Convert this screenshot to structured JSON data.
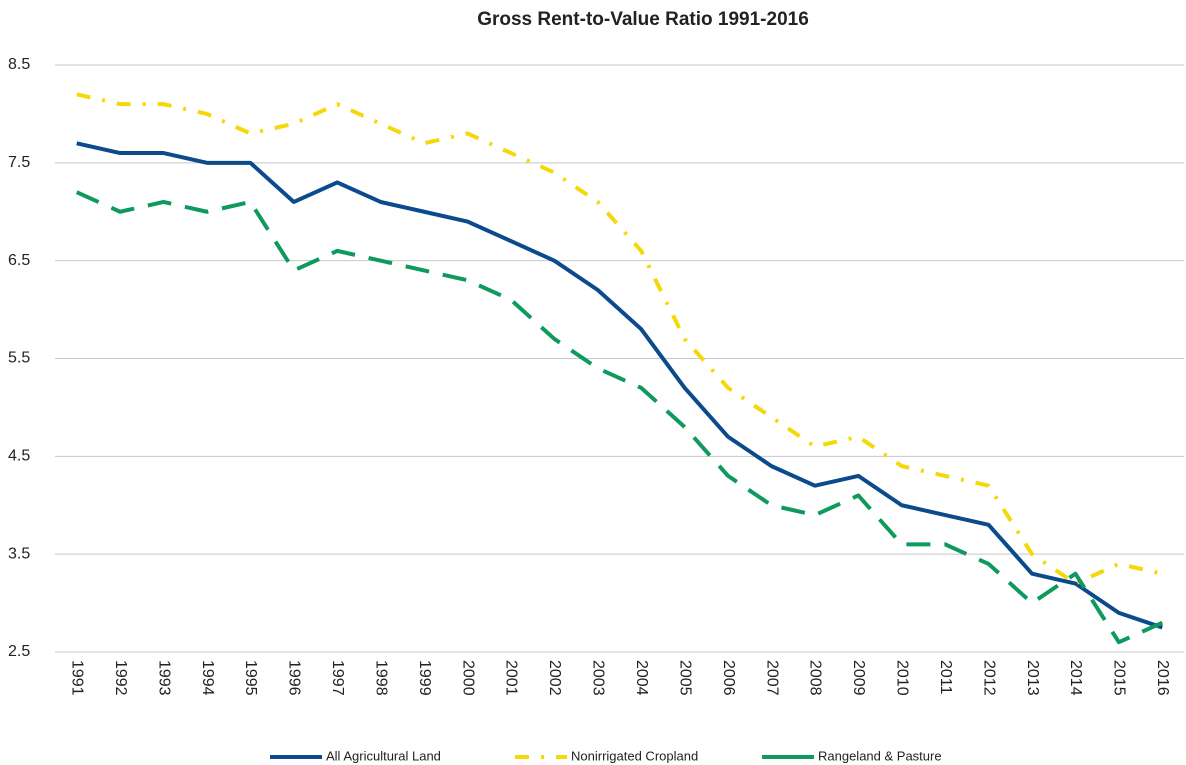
{
  "chart_data": {
    "type": "line",
    "title": "Gross Rent-to-Value Ratio 1991-2016",
    "categories": [
      "1991",
      "1992",
      "1993",
      "1994",
      "1995",
      "1996",
      "1997",
      "1998",
      "1999",
      "2000",
      "2001",
      "2002",
      "2003",
      "2004",
      "2005",
      "2006",
      "2007",
      "2008",
      "2009",
      "2010",
      "2011",
      "2012",
      "2013",
      "2014",
      "2015",
      "2016"
    ],
    "series": [
      {
        "name": "All Agricultural Land",
        "color": "#0b4a8c",
        "style": "solid",
        "values": [
          7.7,
          7.6,
          7.6,
          7.5,
          7.5,
          7.1,
          7.3,
          7.1,
          7.0,
          6.9,
          6.7,
          6.5,
          6.2,
          5.8,
          5.2,
          4.7,
          4.4,
          4.2,
          4.3,
          4.0,
          3.9,
          3.8,
          3.3,
          3.2,
          2.9,
          2.75
        ]
      },
      {
        "name": "Nonirrigated Cropland",
        "color": "#f5d80a",
        "style": "dashdot",
        "values": [
          8.2,
          8.1,
          8.1,
          8.0,
          7.8,
          7.9,
          8.1,
          7.9,
          7.7,
          7.8,
          7.6,
          7.4,
          7.1,
          6.6,
          5.7,
          5.2,
          4.9,
          4.6,
          4.7,
          4.4,
          4.3,
          4.2,
          3.5,
          3.2,
          3.4,
          3.3
        ]
      },
      {
        "name": "Rangeland & Pasture",
        "color": "#0e9a5c",
        "style": "dashed",
        "values": [
          7.2,
          7.0,
          7.1,
          7.0,
          7.1,
          6.4,
          6.6,
          6.5,
          6.4,
          6.3,
          6.1,
          5.7,
          5.4,
          5.2,
          4.8,
          4.3,
          4.0,
          3.9,
          4.1,
          3.6,
          3.6,
          3.4,
          3.0,
          3.3,
          2.6,
          2.8
        ]
      }
    ],
    "ylim": [
      2.5,
      8.5
    ],
    "yticks": [
      2.5,
      3.5,
      4.5,
      5.5,
      6.5,
      7.5,
      8.5
    ],
    "grid": true,
    "legend": "bottom"
  }
}
